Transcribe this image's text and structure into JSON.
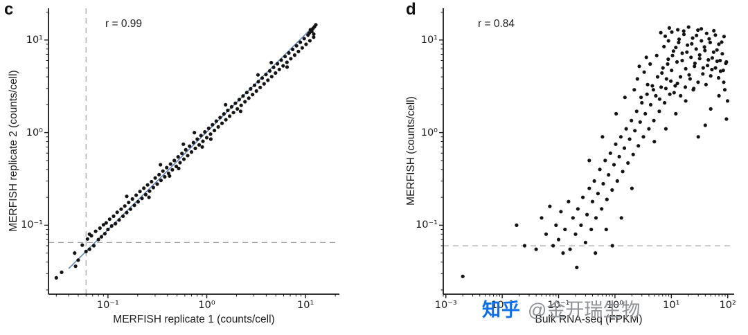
{
  "figure": {
    "background": "#ffffff"
  },
  "watermark": {
    "logo_text": "知乎",
    "handle_text": "@金开瑞生物",
    "logo_color": "#0b6fe8",
    "handle_color": "#8e9296"
  },
  "chart_data": [
    {
      "type": "scatter",
      "panel_label": "c",
      "annotation": "r = 0.99",
      "title": "",
      "xlabel": "MERFISH replicate 1 (counts/cell)",
      "ylabel": "MERFISH replicate 2 (counts/cell)",
      "xscale": "log",
      "yscale": "log",
      "xlim": [
        0.025,
        22
      ],
      "ylim": [
        0.018,
        22
      ],
      "grid": false,
      "legend": null,
      "xticks": [
        {
          "value": 0.1,
          "label": "10⁻¹"
        },
        {
          "value": 1,
          "label": "10⁰"
        },
        {
          "value": 10,
          "label": "10¹"
        }
      ],
      "yticks": [
        {
          "value": 10,
          "label": "10¹"
        },
        {
          "value": 1,
          "label": "10⁰"
        },
        {
          "value": 0.1,
          "label": "10⁻¹"
        }
      ],
      "dashed_vline_x": 0.06,
      "dashed_hline_y": 0.065,
      "fit_line": {
        "x1": 0.04,
        "y1": 0.034,
        "x2": 12,
        "y2": 14,
        "color": "#5b7fb8"
      },
      "point_color": "#141414",
      "axis_color": "#1a1a1a",
      "dashed_line_color": "#9aa0a6",
      "points": [
        [
          0.03,
          0.027
        ],
        [
          0.034,
          0.031
        ],
        [
          0.046,
          0.05
        ],
        [
          0.05,
          0.042
        ],
        [
          0.055,
          0.061
        ],
        [
          0.06,
          0.052
        ],
        [
          0.062,
          0.071
        ],
        [
          0.065,
          0.055
        ],
        [
          0.068,
          0.077
        ],
        [
          0.072,
          0.06
        ],
        [
          0.075,
          0.086
        ],
        [
          0.08,
          0.07
        ],
        [
          0.083,
          0.093
        ],
        [
          0.086,
          0.075
        ],
        [
          0.09,
          0.101
        ],
        [
          0.093,
          0.081
        ],
        [
          0.096,
          0.106
        ],
        [
          0.1,
          0.09
        ],
        [
          0.104,
          0.116
        ],
        [
          0.109,
          0.098
        ],
        [
          0.114,
          0.125
        ],
        [
          0.119,
          0.104
        ],
        [
          0.124,
          0.138
        ],
        [
          0.13,
          0.114
        ],
        [
          0.136,
          0.149
        ],
        [
          0.142,
          0.125
        ],
        [
          0.148,
          0.161
        ],
        [
          0.155,
          0.137
        ],
        [
          0.162,
          0.176
        ],
        [
          0.169,
          0.149
        ],
        [
          0.177,
          0.192
        ],
        [
          0.185,
          0.164
        ],
        [
          0.193,
          0.211
        ],
        [
          0.202,
          0.179
        ],
        [
          0.211,
          0.231
        ],
        [
          0.221,
          0.195
        ],
        [
          0.231,
          0.251
        ],
        [
          0.241,
          0.214
        ],
        [
          0.252,
          0.272
        ],
        [
          0.264,
          0.233
        ],
        [
          0.276,
          0.295
        ],
        [
          0.288,
          0.255
        ],
        [
          0.301,
          0.324
        ],
        [
          0.315,
          0.278
        ],
        [
          0.329,
          0.352
        ],
        [
          0.344,
          0.305
        ],
        [
          0.36,
          0.384
        ],
        [
          0.376,
          0.333
        ],
        [
          0.393,
          0.419
        ],
        [
          0.411,
          0.363
        ],
        [
          0.43,
          0.458
        ],
        [
          0.449,
          0.397
        ],
        [
          0.47,
          0.5
        ],
        [
          0.491,
          0.432
        ],
        [
          0.513,
          0.547
        ],
        [
          0.537,
          0.474
        ],
        [
          0.561,
          0.596
        ],
        [
          0.587,
          0.516
        ],
        [
          0.613,
          0.652
        ],
        [
          0.641,
          0.565
        ],
        [
          0.67,
          0.714
        ],
        [
          0.701,
          0.618
        ],
        [
          0.733,
          0.78
        ],
        [
          0.766,
          0.675
        ],
        [
          0.801,
          0.851
        ],
        [
          0.837,
          0.737
        ],
        [
          0.875,
          0.93
        ],
        [
          0.915,
          0.806
        ],
        [
          0.957,
          1.018
        ],
        [
          1.0,
          0.882
        ],
        [
          1.046,
          1.113
        ],
        [
          1.093,
          0.965
        ],
        [
          1.143,
          1.216
        ],
        [
          1.195,
          1.055
        ],
        [
          1.249,
          1.33
        ],
        [
          1.306,
          1.153
        ],
        [
          1.366,
          1.454
        ],
        [
          1.428,
          1.261
        ],
        [
          1.493,
          1.59
        ],
        [
          1.561,
          1.378
        ],
        [
          1.632,
          1.738
        ],
        [
          1.706,
          1.507
        ],
        [
          1.784,
          1.9
        ],
        [
          1.865,
          1.648
        ],
        [
          1.95,
          2.077
        ],
        [
          2.039,
          1.802
        ],
        [
          2.132,
          2.271
        ],
        [
          2.229,
          1.97
        ],
        [
          2.33,
          2.483
        ],
        [
          2.436,
          2.154
        ],
        [
          2.547,
          2.715
        ],
        [
          2.663,
          2.355
        ],
        [
          2.784,
          2.968
        ],
        [
          2.911,
          2.575
        ],
        [
          3.043,
          3.245
        ],
        [
          3.182,
          2.815
        ],
        [
          3.326,
          3.548
        ],
        [
          3.478,
          3.078
        ],
        [
          3.636,
          3.879
        ],
        [
          3.802,
          3.366
        ],
        [
          3.975,
          4.241
        ],
        [
          4.156,
          3.68
        ],
        [
          4.345,
          4.637
        ],
        [
          4.543,
          4.023
        ],
        [
          4.75,
          5.07
        ],
        [
          4.966,
          4.399
        ],
        [
          5.192,
          5.543
        ],
        [
          5.428,
          4.81
        ],
        [
          5.675,
          6.06
        ],
        [
          5.934,
          5.259
        ],
        [
          6.204,
          6.626
        ],
        [
          6.486,
          5.75
        ],
        [
          6.781,
          7.245
        ],
        [
          7.09,
          6.287
        ],
        [
          7.413,
          7.921
        ],
        [
          7.75,
          6.874
        ],
        [
          8.103,
          8.661
        ],
        [
          8.472,
          7.516
        ],
        [
          8.857,
          9.47
        ],
        [
          9.26,
          8.218
        ],
        [
          9.682,
          10.354
        ],
        [
          10.122,
          8.985
        ],
        [
          10.583,
          11.321
        ],
        [
          11.065,
          9.824
        ],
        [
          11.568,
          12.378
        ],
        [
          12.094,
          10.741
        ],
        [
          11.2,
          12.9
        ],
        [
          12.3,
          13.9
        ],
        [
          11.9,
          13.3
        ],
        [
          12.7,
          14.6
        ],
        [
          10.9,
          11.9
        ],
        [
          12.1,
          11.6
        ],
        [
          0.34,
          0.45
        ],
        [
          0.52,
          0.41
        ],
        [
          0.75,
          1.0
        ],
        [
          1.1,
          0.85
        ],
        [
          1.55,
          2.0
        ],
        [
          2.2,
          1.7
        ],
        [
          3.3,
          4.2
        ],
        [
          0.155,
          0.205
        ],
        [
          0.26,
          0.2
        ],
        [
          0.58,
          0.75
        ],
        [
          0.9,
          0.7
        ],
        [
          4.5,
          5.7
        ],
        [
          6.5,
          5.1
        ],
        [
          0.42,
          0.34
        ],
        [
          0.047,
          0.036
        ],
        [
          0.065,
          0.08
        ]
      ]
    },
    {
      "type": "scatter",
      "panel_label": "d",
      "annotation": "r = 0.84",
      "title": "",
      "xlabel": "Bulk RNA-seq (FPKM)",
      "ylabel": "MERFISH (counts/cell)",
      "xscale": "log",
      "yscale": "log",
      "xlim": [
        0.0009,
        130
      ],
      "ylim": [
        0.018,
        22
      ],
      "grid": false,
      "legend": null,
      "xticks": [
        {
          "value": 0.001,
          "label": "10⁻³"
        },
        {
          "value": 0.01,
          "label": "10⁻²"
        },
        {
          "value": 0.1,
          "label": "10⁻¹"
        },
        {
          "value": 1,
          "label": "10⁰"
        },
        {
          "value": 10,
          "label": "10¹"
        },
        {
          "value": 100,
          "label": "10²"
        }
      ],
      "yticks": [
        {
          "value": 10,
          "label": "10¹"
        },
        {
          "value": 1,
          "label": "10⁰"
        },
        {
          "value": 0.1,
          "label": "10⁻¹"
        }
      ],
      "dashed_vline_x": null,
      "dashed_hline_y": 0.06,
      "fit_line": null,
      "point_color": "#141414",
      "axis_color": "#1a1a1a",
      "dashed_line_color": "#9aa0a6",
      "points": [
        [
          0.002,
          0.028
        ],
        [
          0.018,
          0.1
        ],
        [
          0.025,
          0.06
        ],
        [
          0.04,
          0.055
        ],
        [
          0.05,
          0.12
        ],
        [
          0.06,
          0.08
        ],
        [
          0.07,
          0.16
        ],
        [
          0.08,
          0.06
        ],
        [
          0.09,
          0.1
        ],
        [
          0.1,
          0.07
        ],
        [
          0.11,
          0.14
        ],
        [
          0.12,
          0.05
        ],
        [
          0.13,
          0.09
        ],
        [
          0.15,
          0.18
        ],
        [
          0.16,
          0.055
        ],
        [
          0.18,
          0.12
        ],
        [
          0.2,
          0.08
        ],
        [
          0.21,
          0.035
        ],
        [
          0.22,
          0.15
        ],
        [
          0.25,
          0.1
        ],
        [
          0.27,
          0.2
        ],
        [
          0.3,
          0.065
        ],
        [
          0.32,
          0.13
        ],
        [
          0.35,
          0.25
        ],
        [
          0.38,
          0.09
        ],
        [
          0.4,
          0.18
        ],
        [
          0.43,
          0.3
        ],
        [
          0.46,
          0.12
        ],
        [
          0.5,
          0.22
        ],
        [
          0.54,
          0.4
        ],
        [
          0.58,
          0.15
        ],
        [
          0.62,
          0.28
        ],
        [
          0.67,
          0.5
        ],
        [
          0.72,
          0.19
        ],
        [
          0.77,
          0.35
        ],
        [
          0.83,
          0.6
        ],
        [
          0.89,
          0.24
        ],
        [
          0.96,
          0.45
        ],
        [
          1.03,
          0.75
        ],
        [
          1.1,
          0.3
        ],
        [
          1.19,
          0.55
        ],
        [
          1.27,
          0.9
        ],
        [
          1.37,
          0.38
        ],
        [
          1.47,
          0.68
        ],
        [
          1.58,
          1.1
        ],
        [
          1.7,
          0.47
        ],
        [
          1.82,
          0.85
        ],
        [
          1.96,
          1.35
        ],
        [
          2.1,
          0.58
        ],
        [
          2.26,
          1.05
        ],
        [
          2.43,
          1.7
        ],
        [
          2.6,
          0.72
        ],
        [
          2.8,
          1.3
        ],
        [
          3.0,
          2.1
        ],
        [
          3.2,
          0.9
        ],
        [
          3.45,
          1.6
        ],
        [
          3.7,
          2.6
        ],
        [
          4.0,
          1.1
        ],
        [
          4.3,
          2.0
        ],
        [
          4.6,
          3.2
        ],
        [
          4.9,
          1.35
        ],
        [
          5.3,
          2.5
        ],
        [
          5.7,
          4.0
        ],
        [
          6.1,
          1.7
        ],
        [
          6.6,
          3.1
        ],
        [
          7.1,
          5.0
        ],
        [
          7.6,
          2.1
        ],
        [
          8.2,
          3.8
        ],
        [
          8.8,
          6.2
        ],
        [
          9.4,
          2.6
        ],
        [
          10.1,
          4.7
        ],
        [
          10.9,
          7.6
        ],
        [
          11.7,
          3.2
        ],
        [
          12.6,
          5.8
        ],
        [
          13.5,
          9.4
        ],
        [
          14.5,
          4.0
        ],
        [
          15.6,
          7.2
        ],
        [
          16.7,
          11.5
        ],
        [
          18.0,
          4.9
        ],
        [
          19.3,
          8.8
        ],
        [
          20.7,
          4.2
        ],
        [
          22.3,
          6.5
        ],
        [
          23.9,
          10.5
        ],
        [
          25.7,
          5.2
        ],
        [
          27.6,
          8.0
        ],
        [
          29.6,
          12.8
        ],
        [
          31.8,
          6.3
        ],
        [
          34.2,
          9.8
        ],
        [
          36.7,
          5.0
        ],
        [
          39.4,
          7.7
        ],
        [
          42.3,
          11.8
        ],
        [
          45.4,
          6.1
        ],
        [
          48.8,
          9.4
        ],
        [
          52.4,
          4.8
        ],
        [
          56.2,
          7.4
        ],
        [
          60.4,
          11.3
        ],
        [
          64.8,
          5.9
        ],
        [
          69.6,
          9.0
        ],
        [
          74.7,
          4.6
        ],
        [
          80.2,
          7.1
        ],
        [
          86.1,
          10.9
        ],
        [
          92.5,
          5.6
        ],
        [
          99.3,
          2.2
        ],
        [
          95.0,
          1.4
        ],
        [
          2.2,
          2.9
        ],
        [
          2.5,
          3.8
        ],
        [
          2.9,
          2.4
        ],
        [
          3.3,
          4.5
        ],
        [
          3.8,
          3.3
        ],
        [
          4.2,
          5.5
        ],
        [
          4.8,
          2.9
        ],
        [
          5.5,
          6.8
        ],
        [
          6.2,
          2.3
        ],
        [
          6.8,
          4.4
        ],
        [
          7.4,
          8.5
        ],
        [
          8.0,
          3.0
        ],
        [
          8.6,
          5.5
        ],
        [
          9.2,
          13.5
        ],
        [
          9.8,
          3.6
        ],
        [
          10.5,
          6.8
        ],
        [
          11.2,
          2.7
        ],
        [
          12.0,
          8.3
        ],
        [
          12.8,
          3.4
        ],
        [
          13.7,
          10.2
        ],
        [
          14.6,
          2.5
        ],
        [
          15.6,
          6.0
        ],
        [
          16.6,
          12.5
        ],
        [
          17.7,
          3.1
        ],
        [
          18.9,
          7.4
        ],
        [
          20.2,
          13.8
        ],
        [
          21.5,
          3.8
        ],
        [
          23.0,
          9.1
        ],
        [
          24.5,
          2.9
        ],
        [
          26.2,
          5.6
        ],
        [
          28.0,
          11.2
        ],
        [
          29.8,
          3.5
        ],
        [
          31.8,
          6.9
        ],
        [
          34.0,
          13.2
        ],
        [
          36.2,
          4.3
        ],
        [
          38.6,
          8.4
        ],
        [
          41.2,
          3.3
        ],
        [
          43.9,
          5.3
        ],
        [
          46.8,
          10.3
        ],
        [
          49.9,
          4.1
        ],
        [
          53.2,
          6.4
        ],
        [
          56.7,
          12.6
        ],
        [
          60.5,
          5.0
        ],
        [
          64.5,
          7.8
        ],
        [
          68.7,
          3.9
        ],
        [
          73.3,
          6.0
        ],
        [
          78.1,
          9.5
        ],
        [
          83.3,
          4.7
        ],
        [
          88.8,
          2.9
        ],
        [
          94.6,
          5.8
        ],
        [
          30.0,
          0.9
        ],
        [
          50.0,
          1.8
        ],
        [
          70.0,
          2.5
        ],
        [
          40.0,
          1.2
        ],
        [
          85.0,
          3.5
        ],
        [
          0.9,
          0.06
        ],
        [
          1.3,
          0.12
        ],
        [
          2.0,
          0.25
        ],
        [
          0.45,
          0.05
        ],
        [
          0.7,
          0.09
        ],
        [
          5.0,
          0.8
        ],
        [
          8.0,
          1.1
        ],
        [
          12.0,
          1.6
        ],
        [
          18.0,
          2.2
        ],
        [
          25.0,
          3.0
        ],
        [
          6.5,
          12.0
        ],
        [
          7.8,
          11.0
        ],
        [
          8.9,
          9.8
        ],
        [
          10.2,
          12.2
        ],
        [
          13.0,
          12.9
        ],
        [
          2.7,
          5.2
        ],
        [
          3.6,
          6.5
        ],
        [
          1.5,
          2.4
        ],
        [
          1.05,
          1.6
        ],
        [
          0.6,
          0.9
        ],
        [
          0.35,
          0.5
        ]
      ]
    }
  ]
}
